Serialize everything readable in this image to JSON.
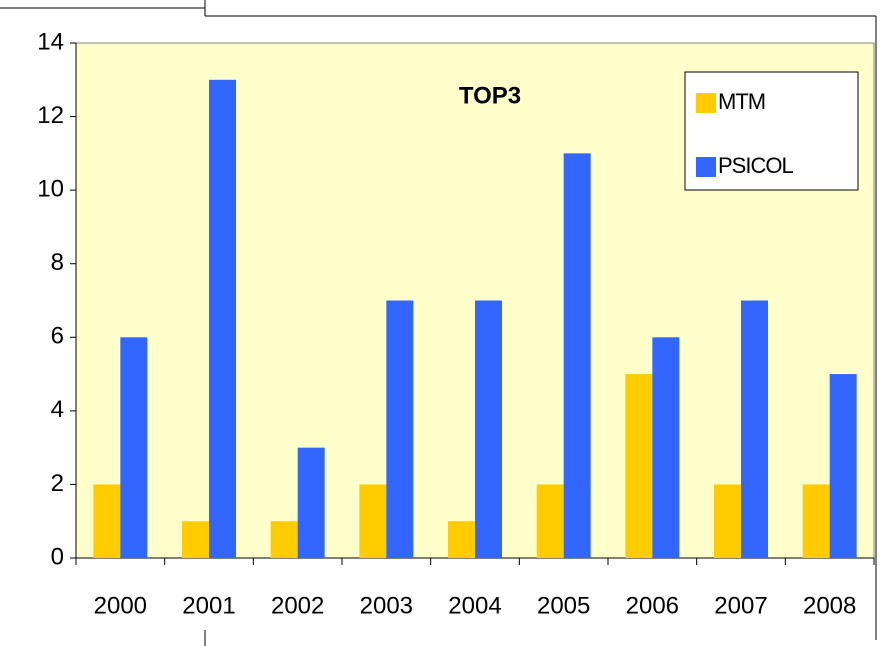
{
  "chart_data": {
    "type": "bar",
    "title": "TOP3",
    "categories": [
      "2000",
      "2001",
      "2002",
      "2003",
      "2004",
      "2005",
      "2006",
      "2007",
      "2008"
    ],
    "series": [
      {
        "name": "MTM",
        "color": "#FFCC00",
        "values": [
          2,
          1,
          1,
          2,
          1,
          2,
          5,
          2,
          2
        ]
      },
      {
        "name": "PSICOL",
        "color": "#3366FF",
        "values": [
          6,
          13,
          3,
          7,
          7,
          11,
          6,
          7,
          5
        ]
      }
    ],
    "ylim": [
      0,
      14
    ],
    "yticks": [
      0,
      2,
      4,
      6,
      8,
      10,
      12,
      14
    ],
    "legend": "top-right",
    "plot_background": "#FFFFCC"
  }
}
